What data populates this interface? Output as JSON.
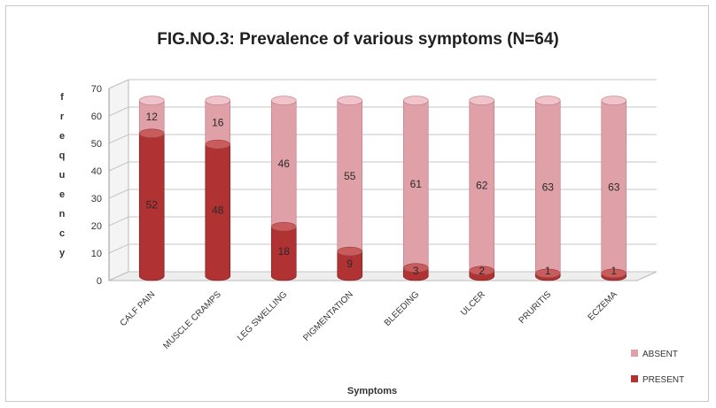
{
  "chart_data": {
    "type": "bar",
    "stacked": true,
    "style": "3d-cylinder",
    "title": "FIG.NO.3: Prevalence of various symptoms (N=64)",
    "xlabel": "Symptoms",
    "ylabel": "frequency",
    "ylim": [
      0,
      70
    ],
    "yticks": [
      0,
      10,
      20,
      30,
      40,
      50,
      60,
      70
    ],
    "grid": true,
    "legend_position": "bottom-right",
    "categories": [
      "CALF PAIN",
      "MUSCLE CRAMPS",
      "LEG SWELLING",
      "PIGMENTATION",
      "BLEEDING",
      "ULCER",
      "PRURITIS",
      "ECZEMA"
    ],
    "series": [
      {
        "name": "PRESENT",
        "color": "#b03232",
        "values": [
          52,
          48,
          18,
          9,
          3,
          2,
          1,
          1
        ]
      },
      {
        "name": "ABSENT",
        "color": "#e0a0a8",
        "values": [
          12,
          16,
          46,
          55,
          61,
          62,
          63,
          63
        ]
      }
    ],
    "data_labels": {
      "PRESENT": [
        "52",
        "48",
        "18",
        "9",
        "3",
        "2",
        "1",
        "1"
      ],
      "ABSENT": [
        "12",
        "16",
        "46",
        "55",
        "61",
        "62",
        "63",
        "63"
      ]
    }
  }
}
